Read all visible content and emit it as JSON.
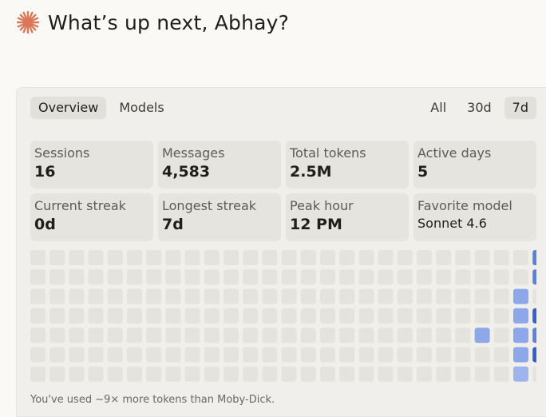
{
  "header": {
    "greeting": "What’s up next, Abhay?",
    "logo_icon": "spark-icon",
    "logo_color": "#d97757"
  },
  "tabs_left": [
    {
      "label": "Overview",
      "active": true
    },
    {
      "label": "Models",
      "active": false
    }
  ],
  "tabs_right": [
    {
      "label": "All",
      "active": false
    },
    {
      "label": "30d",
      "active": false
    },
    {
      "label": "7d",
      "active": true
    }
  ],
  "stats": [
    {
      "label": "Sessions",
      "value": "16"
    },
    {
      "label": "Messages",
      "value": "4,583"
    },
    {
      "label": "Total tokens",
      "value": "2.5M"
    },
    {
      "label": "Active days",
      "value": "5"
    },
    {
      "label": "Current streak",
      "value": "0d"
    },
    {
      "label": "Longest streak",
      "value": "7d"
    },
    {
      "label": "Peak hour",
      "value": "12 PM"
    },
    {
      "label": "Favorite model",
      "value": "Sonnet 4.6"
    }
  ],
  "activity_grid": {
    "columns": 27,
    "rows": 7,
    "colors": {
      "0": "#e4e3de",
      "1": "#9db5ec",
      "2": "#8ca8e8",
      "3": "#5a82d9",
      "4": "#3560c8"
    },
    "active_cells": [
      {
        "row": 0,
        "col": 26,
        "level": 3
      },
      {
        "row": 1,
        "col": 26,
        "level": 3
      },
      {
        "row": 2,
        "col": 25,
        "level": 2
      },
      {
        "row": 3,
        "col": 25,
        "level": 2
      },
      {
        "row": 3,
        "col": 26,
        "level": 4
      },
      {
        "row": 4,
        "col": 23,
        "level": 2
      },
      {
        "row": 4,
        "col": 25,
        "level": 2
      },
      {
        "row": 4,
        "col": 26,
        "level": 3
      },
      {
        "row": 5,
        "col": 25,
        "level": 2
      },
      {
        "row": 5,
        "col": 26,
        "level": 4
      },
      {
        "row": 6,
        "col": 25,
        "level": 1
      }
    ]
  },
  "footnote": "You've used ~9× more tokens than Moby-Dick."
}
